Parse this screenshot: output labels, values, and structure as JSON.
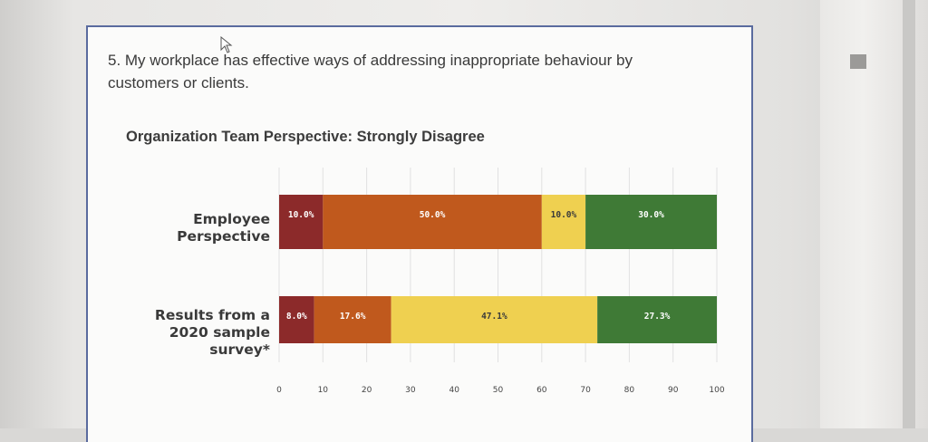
{
  "question": {
    "text": "5. My workplace has effective ways of addressing inappropriate behaviour by customers or clients."
  },
  "chart_data": {
    "type": "bar",
    "orientation": "horizontal",
    "stacked": true,
    "title": "Organization Team Perspective: Strongly Disagree",
    "categories": [
      "Employee Perspective",
      "Results from a 2020 sample survey*"
    ],
    "category_lines": [
      [
        "Employee",
        "Perspective"
      ],
      [
        "Results from a",
        "2020 sample",
        "survey*"
      ]
    ],
    "series": [
      {
        "name": "segment-1",
        "color": "#8c2a2a",
        "values": [
          10.0,
          8.0
        ],
        "labels": [
          "10.0%",
          "8.0%"
        ]
      },
      {
        "name": "segment-2",
        "color": "#c0591d",
        "values": [
          50.0,
          17.6
        ],
        "labels": [
          "50.0%",
          "17.6%"
        ]
      },
      {
        "name": "segment-3",
        "color": "#efd050",
        "values": [
          10.0,
          47.1
        ],
        "labels": [
          "10.0%",
          "47.1%"
        ]
      },
      {
        "name": "segment-4",
        "color": "#3f7a36",
        "values": [
          30.0,
          27.3
        ],
        "labels": [
          "30.0%",
          "27.3%"
        ]
      }
    ],
    "xlim": [
      0,
      100
    ],
    "xticks": [
      0,
      10,
      20,
      30,
      40,
      50,
      60,
      70,
      80,
      90,
      100
    ],
    "grid": true,
    "legend": "none"
  }
}
